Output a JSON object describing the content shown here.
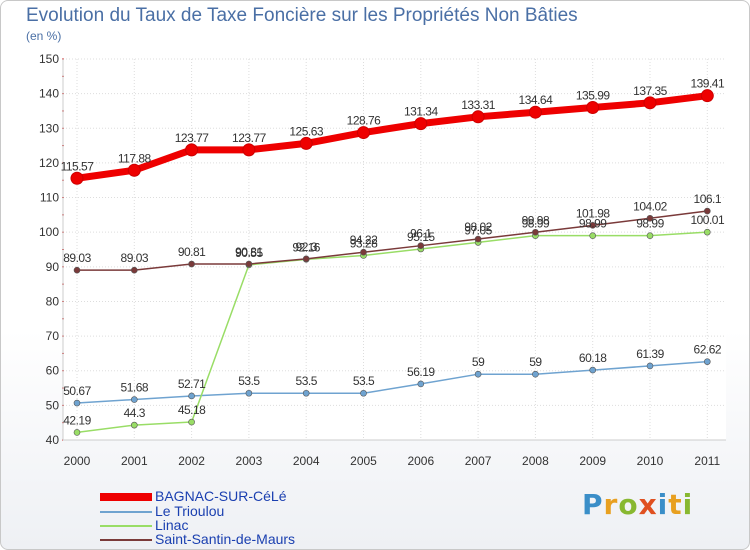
{
  "title": "Evolution du Taux de Taxe Foncière sur les Propriétés Non Bâties",
  "subtitle": "(en %)",
  "logo": "Proxiti",
  "chart_data": {
    "type": "line",
    "title": "Evolution du Taux de Taxe Foncière sur les Propriétés Non Bâties",
    "ylabel": "(en %)",
    "xlabel": "",
    "ylim": [
      40,
      150
    ],
    "yticks": [
      40,
      50,
      60,
      70,
      80,
      90,
      100,
      110,
      120,
      130,
      140,
      150
    ],
    "categories": [
      "2000",
      "2001",
      "2002",
      "2003",
      "2004",
      "2005",
      "2006",
      "2007",
      "2008",
      "2009",
      "2010",
      "2011"
    ],
    "legend_position": "bottom-left",
    "series": [
      {
        "name": "BAGNAC-SUR-CéLé",
        "color": "#ee0000",
        "values": [
          115.57,
          117.88,
          123.77,
          123.77,
          125.63,
          128.76,
          131.34,
          133.31,
          134.64,
          135.99,
          137.35,
          139.41
        ],
        "labels": [
          "115.57",
          "117.88",
          "123.77",
          "123.77",
          "125.63",
          "128.76",
          "131.34",
          "133.31",
          "134.64",
          "135.99",
          "137.35",
          "139.41"
        ]
      },
      {
        "name": "Le Trioulou",
        "color": "#6fa3d0",
        "values": [
          50.67,
          51.68,
          52.71,
          53.5,
          53.5,
          53.5,
          56.19,
          59,
          59,
          60.18,
          61.39,
          62.62
        ],
        "labels": [
          "50.67",
          "51.68",
          "52.71",
          "53.5",
          "53.5",
          "53.5",
          "56.19",
          "59",
          "59",
          "60.18",
          "61.39",
          "62.62"
        ]
      },
      {
        "name": "Linac",
        "color": "#99dd66",
        "values": [
          42.19,
          44.3,
          45.18,
          90.55,
          92.16,
          93.28,
          95.15,
          97.05,
          98.99,
          98.99,
          98.99,
          100.01
        ],
        "labels": [
          "42.19",
          "44.3",
          "45.18",
          "90.55",
          "92.16",
          "93.28",
          "95.15",
          "97.05",
          "98.99",
          "98.99",
          "98.99",
          "100.01"
        ]
      },
      {
        "name": "Saint-Santin-de-Maurs",
        "color": "#7a3a3a",
        "values": [
          89.03,
          89.03,
          90.81,
          90.81,
          92.3,
          94.22,
          96.1,
          98.02,
          99.98,
          101.98,
          104.02,
          106.1
        ],
        "labels": [
          "89.03",
          "89.03",
          "90.81",
          "90.81",
          "92.3",
          "94.22",
          "96.1",
          "98.02",
          "99.98",
          "101.98",
          "104.02",
          "106.1"
        ]
      }
    ]
  }
}
